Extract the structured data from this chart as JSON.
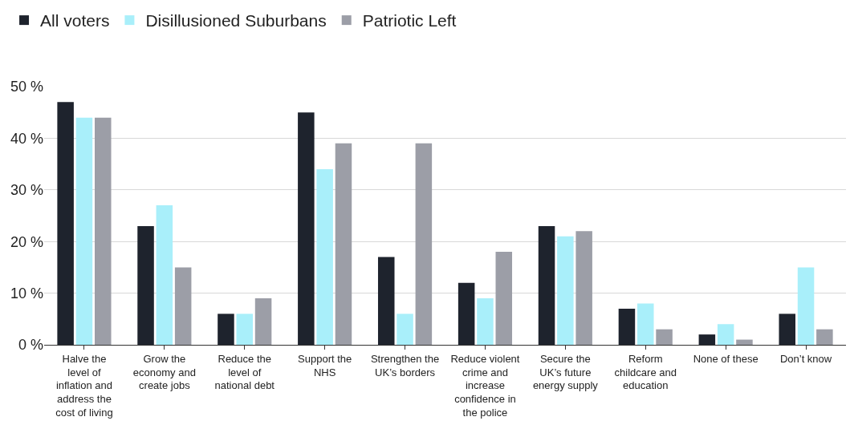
{
  "chart_data": {
    "type": "bar",
    "categories": [
      "Halve the level of inflation and address the cost of living",
      "Grow the economy and create jobs",
      "Reduce the level of national debt",
      "Support the NHS",
      "Strengthen the UK’s borders",
      "Reduce violent crime and increase confidence in the police",
      "Secure the UK’s future energy supply",
      "Reform childcare and education",
      "None of these",
      "Don’t know"
    ],
    "series": [
      {
        "name": "All voters",
        "color": "#1e232d",
        "values": [
          47,
          23,
          6,
          45,
          17,
          12,
          23,
          7,
          2,
          6
        ]
      },
      {
        "name": "Disillusioned Suburbans",
        "color": "#a9effa",
        "values": [
          44,
          27,
          6,
          34,
          6,
          9,
          21,
          8,
          4,
          15
        ]
      },
      {
        "name": "Patriotic Left",
        "color": "#9c9ea7",
        "values": [
          44,
          15,
          9,
          39,
          39,
          18,
          22,
          3,
          1,
          3
        ]
      }
    ],
    "ylim": [
      0,
      50
    ],
    "yticks": [
      {
        "value": 0,
        "label": "0 %"
      },
      {
        "value": 10,
        "label": "10 %"
      },
      {
        "value": 20,
        "label": "20 %"
      },
      {
        "value": 30,
        "label": "30 %"
      },
      {
        "value": 40,
        "label": "40 %"
      },
      {
        "value": 50,
        "label": "50 %"
      }
    ],
    "grid": "y",
    "legend": "top left"
  }
}
